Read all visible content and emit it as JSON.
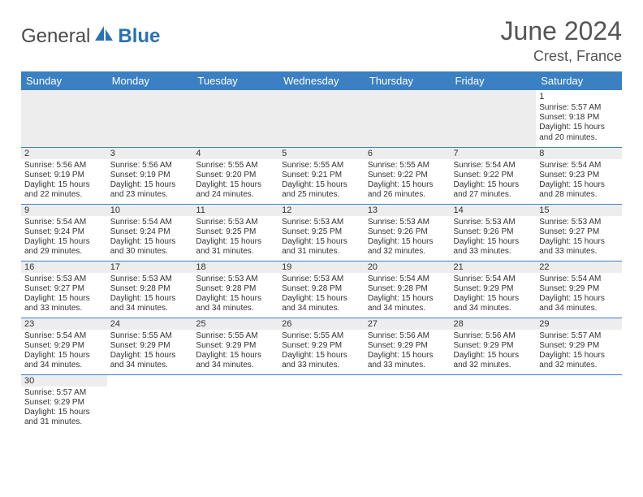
{
  "brand": {
    "word1": "General",
    "word2": "Blue"
  },
  "title": {
    "month": "June 2024",
    "location": "Crest, France"
  },
  "header_bg": "#3a80c2",
  "header_fg": "#ffffff",
  "row_stripe": "#ededed",
  "border_color": "#3a80c2",
  "day_headers": [
    "Sunday",
    "Monday",
    "Tuesday",
    "Wednesday",
    "Thursday",
    "Friday",
    "Saturday"
  ],
  "weeks": [
    [
      null,
      null,
      null,
      null,
      null,
      null,
      {
        "n": "1",
        "l": [
          "Sunrise: 5:57 AM",
          "Sunset: 9:18 PM",
          "Daylight: 15 hours",
          "and 20 minutes."
        ]
      }
    ],
    [
      {
        "n": "2",
        "l": [
          "Sunrise: 5:56 AM",
          "Sunset: 9:19 PM",
          "Daylight: 15 hours",
          "and 22 minutes."
        ]
      },
      {
        "n": "3",
        "l": [
          "Sunrise: 5:56 AM",
          "Sunset: 9:19 PM",
          "Daylight: 15 hours",
          "and 23 minutes."
        ]
      },
      {
        "n": "4",
        "l": [
          "Sunrise: 5:55 AM",
          "Sunset: 9:20 PM",
          "Daylight: 15 hours",
          "and 24 minutes."
        ]
      },
      {
        "n": "5",
        "l": [
          "Sunrise: 5:55 AM",
          "Sunset: 9:21 PM",
          "Daylight: 15 hours",
          "and 25 minutes."
        ]
      },
      {
        "n": "6",
        "l": [
          "Sunrise: 5:55 AM",
          "Sunset: 9:22 PM",
          "Daylight: 15 hours",
          "and 26 minutes."
        ]
      },
      {
        "n": "7",
        "l": [
          "Sunrise: 5:54 AM",
          "Sunset: 9:22 PM",
          "Daylight: 15 hours",
          "and 27 minutes."
        ]
      },
      {
        "n": "8",
        "l": [
          "Sunrise: 5:54 AM",
          "Sunset: 9:23 PM",
          "Daylight: 15 hours",
          "and 28 minutes."
        ]
      }
    ],
    [
      {
        "n": "9",
        "l": [
          "Sunrise: 5:54 AM",
          "Sunset: 9:24 PM",
          "Daylight: 15 hours",
          "and 29 minutes."
        ]
      },
      {
        "n": "10",
        "l": [
          "Sunrise: 5:54 AM",
          "Sunset: 9:24 PM",
          "Daylight: 15 hours",
          "and 30 minutes."
        ]
      },
      {
        "n": "11",
        "l": [
          "Sunrise: 5:53 AM",
          "Sunset: 9:25 PM",
          "Daylight: 15 hours",
          "and 31 minutes."
        ]
      },
      {
        "n": "12",
        "l": [
          "Sunrise: 5:53 AM",
          "Sunset: 9:25 PM",
          "Daylight: 15 hours",
          "and 31 minutes."
        ]
      },
      {
        "n": "13",
        "l": [
          "Sunrise: 5:53 AM",
          "Sunset: 9:26 PM",
          "Daylight: 15 hours",
          "and 32 minutes."
        ]
      },
      {
        "n": "14",
        "l": [
          "Sunrise: 5:53 AM",
          "Sunset: 9:26 PM",
          "Daylight: 15 hours",
          "and 33 minutes."
        ]
      },
      {
        "n": "15",
        "l": [
          "Sunrise: 5:53 AM",
          "Sunset: 9:27 PM",
          "Daylight: 15 hours",
          "and 33 minutes."
        ]
      }
    ],
    [
      {
        "n": "16",
        "l": [
          "Sunrise: 5:53 AM",
          "Sunset: 9:27 PM",
          "Daylight: 15 hours",
          "and 33 minutes."
        ]
      },
      {
        "n": "17",
        "l": [
          "Sunrise: 5:53 AM",
          "Sunset: 9:28 PM",
          "Daylight: 15 hours",
          "and 34 minutes."
        ]
      },
      {
        "n": "18",
        "l": [
          "Sunrise: 5:53 AM",
          "Sunset: 9:28 PM",
          "Daylight: 15 hours",
          "and 34 minutes."
        ]
      },
      {
        "n": "19",
        "l": [
          "Sunrise: 5:53 AM",
          "Sunset: 9:28 PM",
          "Daylight: 15 hours",
          "and 34 minutes."
        ]
      },
      {
        "n": "20",
        "l": [
          "Sunrise: 5:54 AM",
          "Sunset: 9:28 PM",
          "Daylight: 15 hours",
          "and 34 minutes."
        ]
      },
      {
        "n": "21",
        "l": [
          "Sunrise: 5:54 AM",
          "Sunset: 9:29 PM",
          "Daylight: 15 hours",
          "and 34 minutes."
        ]
      },
      {
        "n": "22",
        "l": [
          "Sunrise: 5:54 AM",
          "Sunset: 9:29 PM",
          "Daylight: 15 hours",
          "and 34 minutes."
        ]
      }
    ],
    [
      {
        "n": "23",
        "l": [
          "Sunrise: 5:54 AM",
          "Sunset: 9:29 PM",
          "Daylight: 15 hours",
          "and 34 minutes."
        ]
      },
      {
        "n": "24",
        "l": [
          "Sunrise: 5:55 AM",
          "Sunset: 9:29 PM",
          "Daylight: 15 hours",
          "and 34 minutes."
        ]
      },
      {
        "n": "25",
        "l": [
          "Sunrise: 5:55 AM",
          "Sunset: 9:29 PM",
          "Daylight: 15 hours",
          "and 34 minutes."
        ]
      },
      {
        "n": "26",
        "l": [
          "Sunrise: 5:55 AM",
          "Sunset: 9:29 PM",
          "Daylight: 15 hours",
          "and 33 minutes."
        ]
      },
      {
        "n": "27",
        "l": [
          "Sunrise: 5:56 AM",
          "Sunset: 9:29 PM",
          "Daylight: 15 hours",
          "and 33 minutes."
        ]
      },
      {
        "n": "28",
        "l": [
          "Sunrise: 5:56 AM",
          "Sunset: 9:29 PM",
          "Daylight: 15 hours",
          "and 32 minutes."
        ]
      },
      {
        "n": "29",
        "l": [
          "Sunrise: 5:57 AM",
          "Sunset: 9:29 PM",
          "Daylight: 15 hours",
          "and 32 minutes."
        ]
      }
    ],
    [
      {
        "n": "30",
        "l": [
          "Sunrise: 5:57 AM",
          "Sunset: 9:29 PM",
          "Daylight: 15 hours",
          "and 31 minutes."
        ]
      },
      null,
      null,
      null,
      null,
      null,
      null
    ]
  ]
}
